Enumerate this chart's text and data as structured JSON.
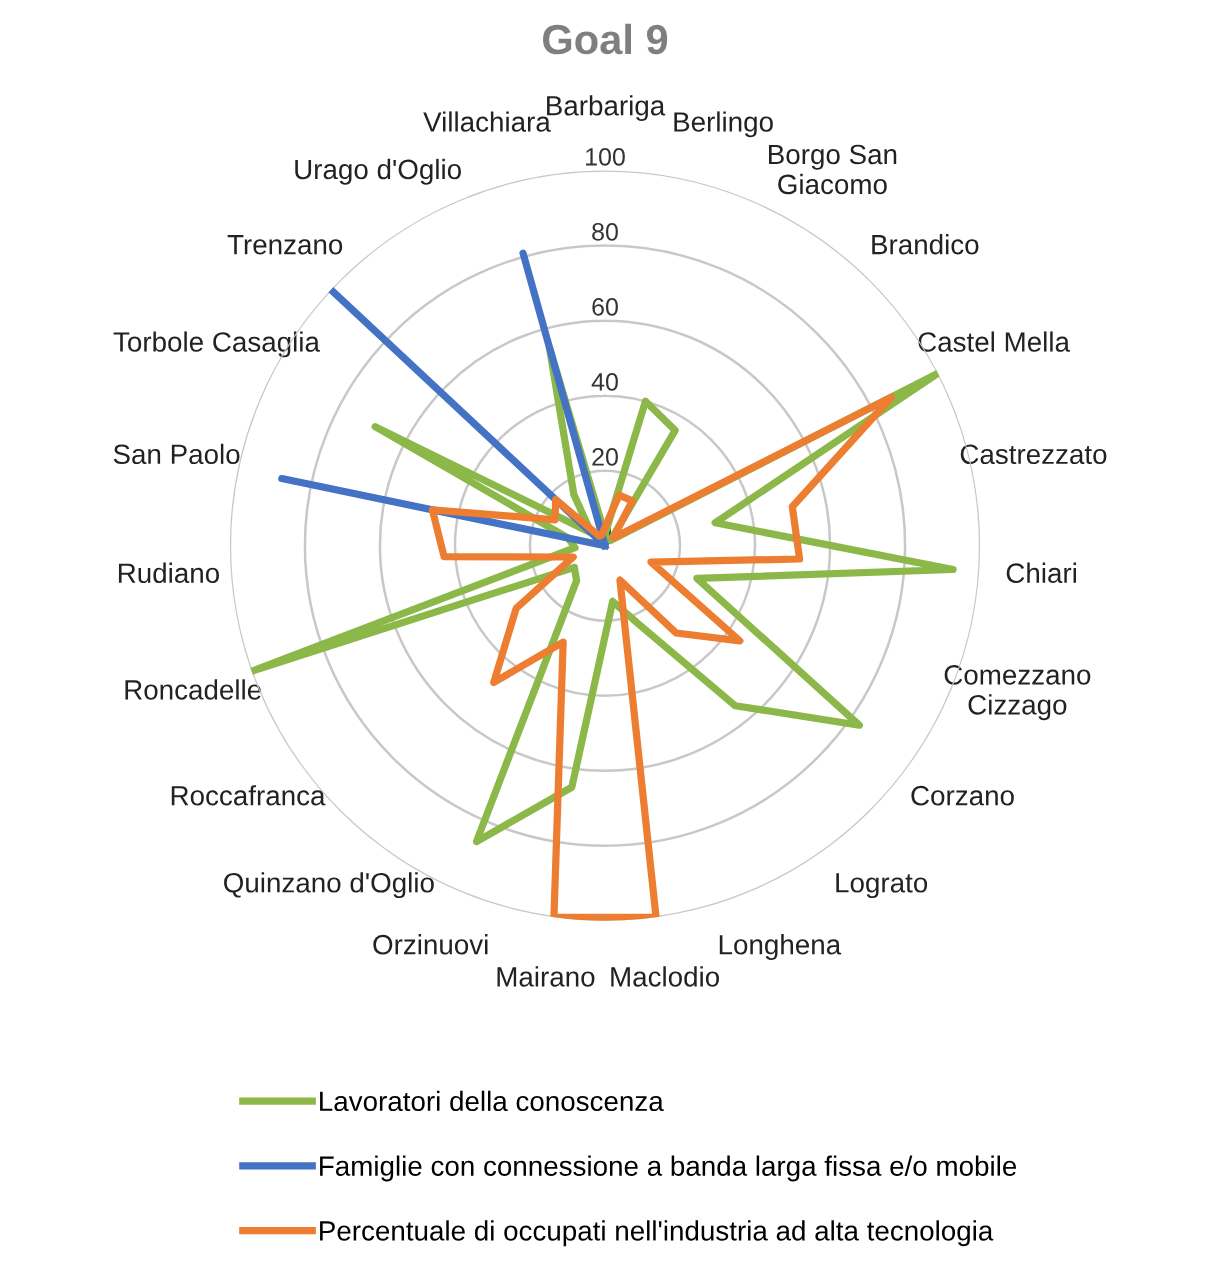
{
  "chart_data": {
    "type": "radar",
    "title": "Goal 9",
    "categories": [
      "Barbariga",
      "Berlingo",
      "Borgo San\nGiacomo",
      "Brandico",
      "Castel Mella",
      "Castrezzato",
      "Chiari",
      "Comezzano\nCizzago",
      "Corzano",
      "Lograto",
      "Longhena",
      "Maclodio",
      "Mairano",
      "Orzinuovi",
      "Quinzano d'Oglio",
      "Roccafranca",
      "Roncadelle",
      "Rudiano",
      "San Paolo",
      "Torbole Casaglia",
      "Trenzano",
      "Urago d'Oglio",
      "Villachiara"
    ],
    "series": [
      {
        "name": "Lavoratori della conoscenza",
        "color": "#8cb84a",
        "values": [
          3,
          40,
          36,
          2,
          100,
          30,
          93,
          26,
          83,
          55,
          23,
          15,
          65,
          86,
          12,
          10,
          100,
          8,
          10,
          69,
          5,
          16,
          55
        ]
      },
      {
        "name": "Famiglie con connessione a banda larga fissa e/o mobile",
        "color": "#4472c4",
        "values": [
          0,
          0,
          0,
          0,
          0,
          0,
          0,
          0,
          0,
          0,
          0,
          0,
          0,
          0,
          0,
          0,
          0,
          0,
          88,
          0,
          100,
          0,
          81
        ]
      },
      {
        "name": "Percentuale di occupati nell'industria ad alta tecnologia",
        "color": "#ed7d31",
        "values": [
          5,
          14,
          14,
          3,
          86,
          51,
          52,
          13,
          44,
          30,
          10,
          100,
          100,
          28,
          47,
          29,
          9,
          43,
          47,
          15,
          18,
          3,
          3
        ]
      }
    ],
    "ylim": [
      0,
      100
    ],
    "yticks": [
      0,
      20,
      40,
      60,
      80,
      100
    ],
    "grid": "y",
    "legend": "bottom",
    "line_style": "solid",
    "marker": "none"
  }
}
